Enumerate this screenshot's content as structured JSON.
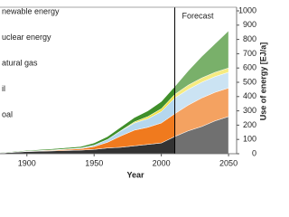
{
  "chart_data": {
    "type": "area",
    "stacked": true,
    "x": [
      1880,
      1900,
      1920,
      1940,
      1950,
      1960,
      1970,
      1980,
      1990,
      2000,
      2010,
      2020,
      2030,
      2040,
      2050
    ],
    "series": [
      {
        "name": "oal",
        "color": "#333333",
        "values": [
          5,
          15,
          20,
          25,
          30,
          40,
          45,
          55,
          65,
          75,
          120,
          160,
          190,
          230,
          260
        ]
      },
      {
        "name": "il",
        "color": "#f07a1e",
        "values": [
          0,
          2,
          5,
          10,
          20,
          40,
          80,
          110,
          120,
          140,
          160,
          180,
          200,
          200,
          200
        ]
      },
      {
        "name": "atural gas",
        "color": "#b5d7ee",
        "values": [
          0,
          1,
          2,
          5,
          10,
          20,
          35,
          50,
          60,
          80,
          110,
          110,
          110,
          110,
          110
        ]
      },
      {
        "name": "uclear energy",
        "color": "#f2e34a",
        "values": [
          0,
          0,
          0,
          0,
          0,
          0,
          2,
          8,
          15,
          20,
          25,
          30,
          30,
          30,
          30
        ]
      },
      {
        "name": "newable energy",
        "color": "#3f8f2a",
        "values": [
          3,
          5,
          8,
          10,
          15,
          20,
          25,
          30,
          40,
          50,
          55,
          100,
          150,
          200,
          260
        ]
      }
    ],
    "xlim": [
      1880,
      2056
    ],
    "xticks": [
      1900,
      1950,
      2000,
      2050
    ],
    "ylim": [
      0,
      1000
    ],
    "yticks": [
      0,
      100,
      200,
      300,
      400,
      500,
      600,
      700,
      800,
      900,
      1000
    ],
    "xlabel": "Year",
    "ylabel": "Use of energy [EJ/a]",
    "forecast_start": 2010,
    "forecast_label": "Forecast"
  }
}
